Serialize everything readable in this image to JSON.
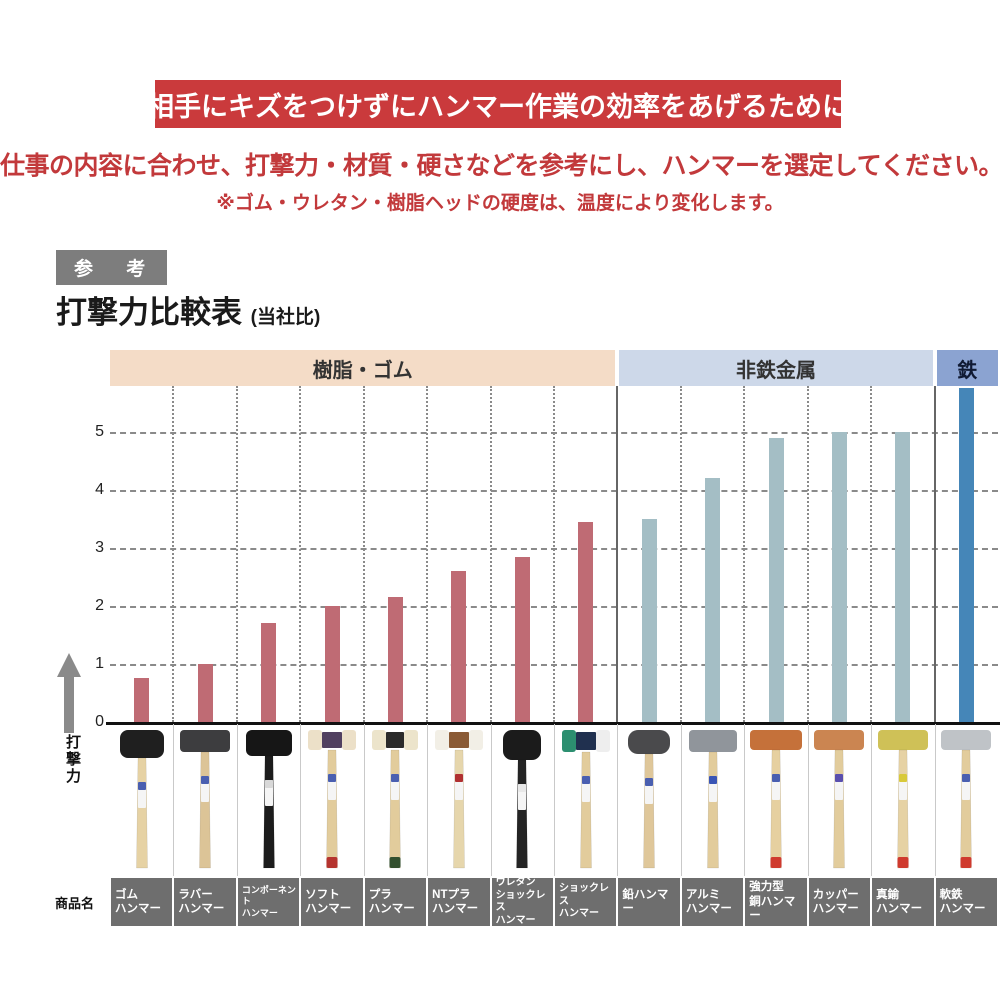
{
  "header": {
    "banner": "相手にキズをつけずにハンマー作業の効率をあげるために",
    "lead": "仕事の内容に合わせ、打撃力・材質・硬さなどを参考にし、ハンマーを選定してください。",
    "note": "※ゴム・ウレタン・樹脂ヘッドの硬度は、温度により変化します。"
  },
  "section": {
    "badge": "参 考",
    "title": "打撃力比較表",
    "title_suffix": "(当社比)"
  },
  "colors": {
    "banner_bg": "#ca3a3c",
    "accent_red": "#c2393b",
    "badge_bg": "#7d7d7d",
    "label_bg": "#6e6e6e",
    "axis": "#111111"
  },
  "chart_data": {
    "type": "bar",
    "title": "打撃力比較表(当社比)",
    "xlabel": "",
    "ylabel": "打撃力",
    "row_label": "商品名",
    "ylim": [
      0,
      5.8
    ],
    "yticks": [
      0,
      1,
      2,
      3,
      4,
      5
    ],
    "grid": true,
    "legend_position": "none",
    "groups": [
      {
        "label": "樹脂・ゴム",
        "band": "#f4dcc7",
        "bar": "#bf6b74",
        "count": 8
      },
      {
        "label": "非鉄金属",
        "band": "#cdd8e9",
        "bar": "#a4bec5",
        "count": 5
      },
      {
        "label": "鉄",
        "band": "#8ba3d1",
        "bar": "#4586b8",
        "count": 1
      }
    ],
    "items": [
      {
        "name": "ゴムハンマー",
        "label_lines": [
          "ゴム",
          "ハンマー"
        ],
        "value": 0.75,
        "hammer": {
          "head": [
            "#1f1f1f"
          ],
          "hw": 44,
          "hh": 28,
          "hr": 8,
          "handle": "#e6d2a4",
          "butt": null,
          "sticker": "#4a5fb0"
        }
      },
      {
        "name": "ラバーハンマー",
        "label_lines": [
          "ラバー",
          "ハンマー"
        ],
        "value": 1.0,
        "hammer": {
          "head": [
            "#3d3d3f"
          ],
          "hw": 50,
          "hh": 22,
          "hr": 4,
          "handle": "#dcc497",
          "butt": null,
          "sticker": "#4a5fb0"
        }
      },
      {
        "name": "コンポーネントハンマー",
        "label_lines": [
          "コンポーネント",
          "ハンマー"
        ],
        "value": 1.7,
        "hammer": {
          "head": [
            "#161616"
          ],
          "hw": 46,
          "hh": 26,
          "hr": 6,
          "handle": "#1c1c1c",
          "butt": null,
          "sticker": "#d8d8d8"
        }
      },
      {
        "name": "ソフトハンマー",
        "label_lines": [
          "ソフト",
          "ハンマー"
        ],
        "value": 2.0,
        "hammer": {
          "head": [
            "#ece0c8",
            "#514060",
            "#ece0c8"
          ],
          "hw": 48,
          "hh": 20,
          "handle": "#e2cc9c",
          "butt": "#b5342f",
          "sticker": "#4a5fb0"
        }
      },
      {
        "name": "プラハンマー",
        "label_lines": [
          "プラ",
          "ハンマー"
        ],
        "value": 2.15,
        "hammer": {
          "head": [
            "#ece4cb",
            "#2a2a2a",
            "#ece4cb"
          ],
          "hw": 46,
          "hh": 20,
          "handle": "#e2cc9c",
          "butt": "#33502f",
          "sticker": "#4a5fb0"
        }
      },
      {
        "name": "NTプラハンマー",
        "label_lines": [
          "NTプラ",
          "ハンマー"
        ],
        "value": 2.6,
        "hammer": {
          "head": [
            "#f2efe6",
            "#8a5a36",
            "#f2efe6"
          ],
          "hw": 48,
          "hh": 20,
          "handle": "#e6d6ac",
          "butt": null,
          "sticker": "#b03030"
        }
      },
      {
        "name": "ウレタンショックレスハンマー",
        "label_lines": [
          "ウレタン",
          "ショックレス",
          "ハンマー"
        ],
        "value": 2.85,
        "hammer": {
          "head": [
            "#1b1b1b"
          ],
          "hw": 38,
          "hh": 30,
          "hr": 9,
          "handle": "#242424",
          "butt": null,
          "sticker": "#e8e8e8"
        }
      },
      {
        "name": "ショックレスハンマー",
        "label_lines": [
          "ショックレス",
          "ハンマー"
        ],
        "value": 3.45,
        "hammer": {
          "head": [
            "#2c8f70",
            "#20304f",
            "#eeeeee"
          ],
          "hw": 48,
          "hh": 22,
          "handle": "#e2cc9c",
          "butt": null,
          "sticker": "#4a5fb0"
        }
      },
      {
        "name": "鉛ハンマー",
        "label_lines": [
          "鉛ハンマー"
        ],
        "value": 3.5,
        "hammer": {
          "head": [
            "#4a4a4c"
          ],
          "hw": 42,
          "hh": 24,
          "hr": 10,
          "handle": "#dfc79a",
          "butt": null,
          "sticker": "#4a5fb0"
        }
      },
      {
        "name": "アルミハンマー",
        "label_lines": [
          "アルミ",
          "ハンマー"
        ],
        "value": 4.2,
        "hammer": {
          "head": [
            "#90959b"
          ],
          "hw": 48,
          "hh": 22,
          "hr": 4,
          "handle": "#e2cc9c",
          "butt": null,
          "sticker": "#3a55b5"
        }
      },
      {
        "name": "強力型銅ハンマー",
        "label_lines": [
          "強力型",
          "銅ハンマー"
        ],
        "value": 4.9,
        "hammer": {
          "head": [
            "#c5713a"
          ],
          "hw": 52,
          "hh": 20,
          "hr": 4,
          "handle": "#e6d0a0",
          "butt": "#cf3a2e",
          "sticker": "#4a5fb0"
        }
      },
      {
        "name": "カッパーハンマー",
        "label_lines": [
          "カッパー",
          "ハンマー"
        ],
        "value": 5.0,
        "hammer": {
          "head": [
            "#cb8551"
          ],
          "hw": 50,
          "hh": 20,
          "hr": 4,
          "handle": "#e2cc9c",
          "butt": null,
          "sticker": "#5a4fae"
        }
      },
      {
        "name": "真鍮ハンマー",
        "label_lines": [
          "真鍮",
          "ハンマー"
        ],
        "value": 5.0,
        "hammer": {
          "head": [
            "#cfc157"
          ],
          "hw": 50,
          "hh": 20,
          "hr": 4,
          "handle": "#e6d2a4",
          "butt": "#cf3a2e",
          "sticker": "#d8c93a"
        }
      },
      {
        "name": "軟鉄ハンマー",
        "label_lines": [
          "軟鉄",
          "ハンマー"
        ],
        "value": 5.75,
        "hammer": {
          "head": [
            "#bfc3c7"
          ],
          "hw": 50,
          "hh": 20,
          "hr": 4,
          "handle": "#e2cc9c",
          "butt": "#cf3a2e",
          "sticker": "#4a5fb0"
        }
      }
    ]
  }
}
